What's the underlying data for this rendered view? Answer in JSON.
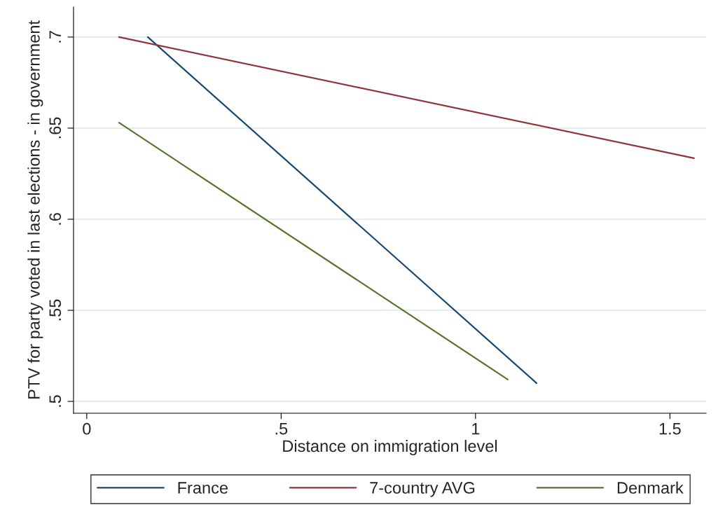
{
  "chart_data": {
    "type": "line",
    "xlabel": "Distance on immigration level",
    "ylabel": "PTV for party voted in last elections - in government",
    "series": [
      {
        "name": "France",
        "color": "#1a476f",
        "x": [
          0.157,
          1.157
        ],
        "values": [
          0.7,
          0.51
        ]
      },
      {
        "name": "7-country AVG",
        "color": "#90353b",
        "x": [
          0.083,
          1.562
        ],
        "values": [
          0.7,
          0.6335
        ]
      },
      {
        "name": "Denmark",
        "color": "#55752f",
        "x": [
          0.083,
          1.083
        ],
        "values": [
          0.653,
          0.512
        ]
      }
    ],
    "xlim": [
      -0.034,
      1.593
    ],
    "ylim": [
      0.4935,
      0.7165
    ],
    "xticks": [
      {
        "value": 0,
        "label": "0"
      },
      {
        "value": 0.5,
        "label": ".5"
      },
      {
        "value": 1,
        "label": "1"
      },
      {
        "value": 1.5,
        "label": "1.5"
      }
    ],
    "yticks": [
      {
        "value": 0.5,
        "label": ".5"
      },
      {
        "value": 0.55,
        "label": ".55"
      },
      {
        "value": 0.6,
        "label": ".6"
      },
      {
        "value": 0.65,
        "label": ".65"
      },
      {
        "value": 0.7,
        "label": ".7"
      }
    ],
    "grid": "y",
    "legend": "bottom",
    "marker": "none",
    "line_style": "solid"
  }
}
